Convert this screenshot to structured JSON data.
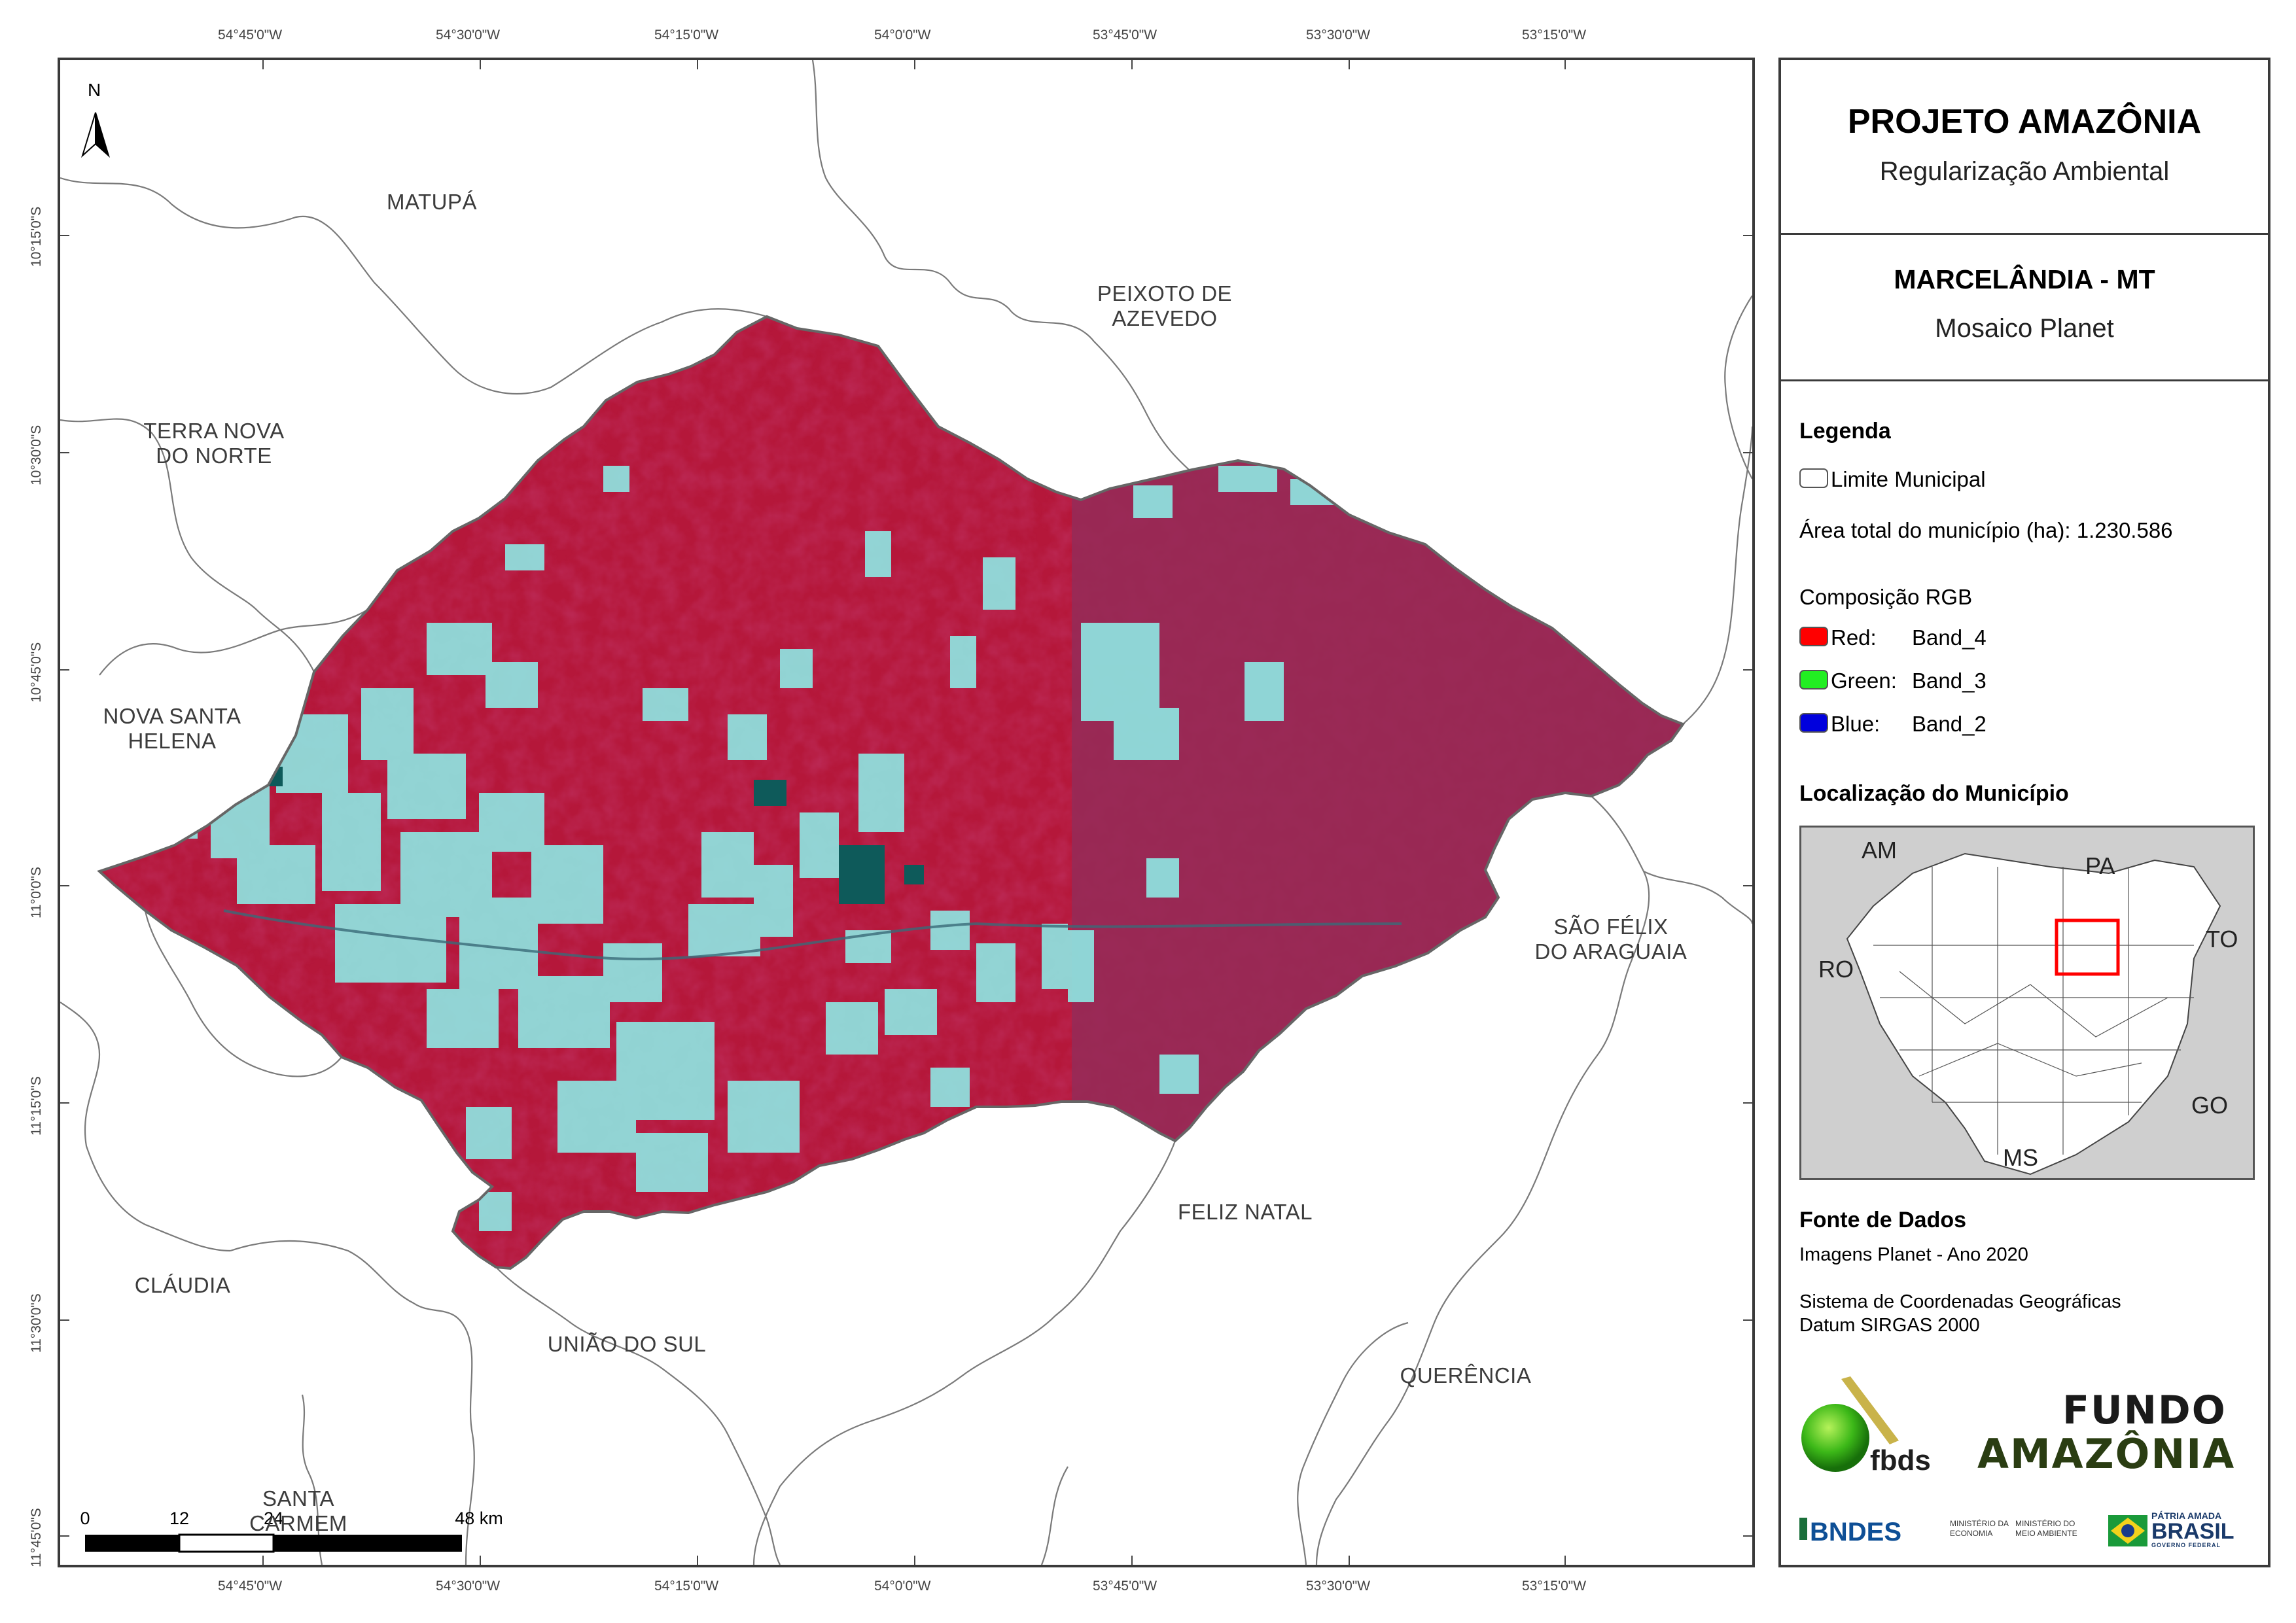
{
  "title": {
    "project": "PROJETO AMAZÔNIA",
    "subtitle": "Regularização Ambiental",
    "municipality": "MARCELÂNDIA - MT",
    "mosaic": "Mosaico Planet"
  },
  "legend": {
    "heading": "Legenda",
    "boundary_label": "Limite Municipal",
    "area_label": "Área total do município (ha): 1.230.586",
    "rgb_heading": "Composição RGB",
    "bands": [
      {
        "channel": "Red:",
        "band": "Band_4",
        "color": "#ff0000"
      },
      {
        "channel": "Green:",
        "band": "Band_3",
        "color": "#22ee22"
      },
      {
        "channel": "Blue:",
        "band": "Band_2",
        "color": "#0000dd"
      }
    ]
  },
  "location": {
    "heading": "Localização do Município",
    "labels": {
      "am": "AM",
      "pa": "PA",
      "to": "TO",
      "ro": "RO",
      "go": "GO",
      "ms": "MS"
    }
  },
  "sources": {
    "heading": "Fonte de Dados",
    "images": "Imagens Planet - Ano 2020",
    "crs": "Sistema de Coordenadas Geográficas",
    "datum": "Datum SIRGAS 2000"
  },
  "logos": {
    "fbds": "fbds",
    "fundo_line1": "FUNDO",
    "fundo_line2": "AMAZÔNIA",
    "bndes": "BNDES",
    "min_economia": "MINISTÉRIO DA ECONOMIA",
    "min_meio_ambiente": "MINISTÉRIO DO MEIO AMBIENTE",
    "patria_line1": "PÁTRIA AMADA",
    "patria_line2": "BRASIL",
    "patria_line3": "GOVERNO FEDERAL"
  },
  "graticule": {
    "lon_labels": [
      "54°45'0\"W",
      "54°30'0\"W",
      "54°15'0\"W",
      "54°0'0\"W",
      "53°45'0\"W",
      "53°30'0\"W",
      "53°15'0\"W"
    ],
    "lat_labels": [
      "10°15'0\"S",
      "10°30'0\"S",
      "10°45'0\"S",
      "11°0'0\"S",
      "11°15'0\"S",
      "11°30'0\"S",
      "11°45'0\"S"
    ]
  },
  "north_arrow": "N",
  "scalebar": {
    "labels": [
      "0",
      "12",
      "24",
      "48 km"
    ]
  },
  "municipalities": {
    "matupa": "MATUPÁ",
    "peixoto_1": "PEIXOTO DE",
    "peixoto_2": "AZEVEDO",
    "terra_nova_1": "TERRA NOVA",
    "terra_nova_2": "DO NORTE",
    "nova_santa_1": "NOVA SANTA",
    "nova_santa_2": "HELENA",
    "sao_felix_1": "SÃO FÉLIX",
    "sao_felix_2": "DO ARAGUAIA",
    "feliz_natal": "FELIZ NATAL",
    "claudia": "CLÁUDIA",
    "uniao_do_sul": "UNIÃO DO SUL",
    "querencia": "QUERÊNCIA",
    "santa_carmem_1": "SANTA",
    "santa_carmem_2": "CARMEM"
  },
  "colors": {
    "forest": "#b5173a",
    "deforested": "#8ee8e4",
    "water": "#0e5a5a",
    "boundary": "#666666",
    "inset_state": "#ffffff",
    "inset_highlight": "#ff0000"
  }
}
